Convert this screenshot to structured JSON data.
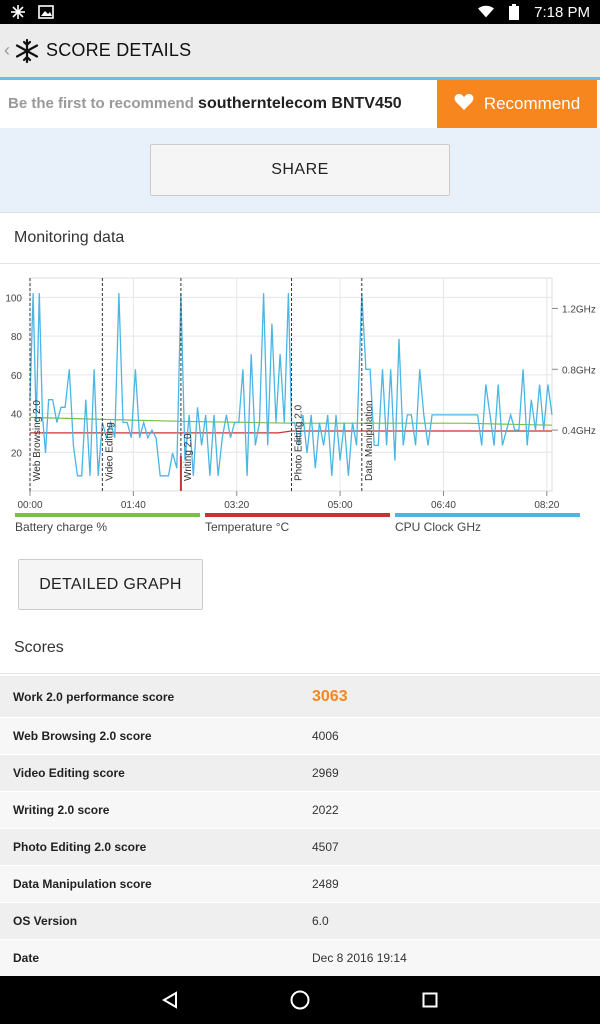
{
  "status_bar": {
    "time": "7:18 PM",
    "icons": [
      "snowflake-icon",
      "gallery-icon",
      "wifi-icon",
      "battery-icon"
    ]
  },
  "app_bar": {
    "title": "SCORE DETAILS",
    "back_icon": "chevron-left-icon",
    "logo_icon": "snowflake-icon"
  },
  "recommend": {
    "prompt": "Be the first to recommend",
    "device": "southerntelecom BNTV450",
    "button_label": "Recommend",
    "button_icon": "heart-icon",
    "accent": "#f7861e"
  },
  "share_label": "SHARE",
  "monitoring": {
    "title": "Monitoring data",
    "legend": [
      {
        "label": "Battery charge %",
        "color": "#7ac143"
      },
      {
        "label": "Temperature °C",
        "color": "#c83232"
      },
      {
        "label": "CPU Clock GHz",
        "color": "#4ab6e4"
      }
    ],
    "detailed_graph_label": "DETAILED GRAPH"
  },
  "chart_data": {
    "type": "line",
    "x_ticks": [
      "00:00",
      "01:40",
      "03:20",
      "05:00",
      "06:40",
      "08:20"
    ],
    "y_left_ticks": [
      100,
      80,
      60,
      40,
      20
    ],
    "y_right_ticks": [
      "1.2GHz",
      "0.8GHz",
      "0.4GHz"
    ],
    "x_range_min": [
      0,
      505
    ],
    "y_left_range": [
      0,
      110
    ],
    "y_right_range_ghz": [
      0,
      1.4
    ],
    "section_markers": [
      {
        "label": "Web Browsing 2.0",
        "t": 0
      },
      {
        "label": "Video Editing",
        "t": 70
      },
      {
        "label": "Writing 2.0",
        "t": 146
      },
      {
        "label": "Photo Editing 2.0",
        "t": 253
      },
      {
        "label": "Data Manipulation",
        "t": 321
      }
    ],
    "series": [
      {
        "name": "Battery charge %",
        "color": "#7ac143",
        "t": [
          0,
          70,
          146,
          253,
          321,
          420,
          505
        ],
        "values": [
          38,
          37,
          36,
          35,
          35,
          35,
          34
        ]
      },
      {
        "name": "Temperature °C",
        "color": "#c83232",
        "t": [
          0,
          70,
          146,
          240,
          253,
          321,
          505
        ],
        "values": [
          30,
          30,
          30,
          30,
          31,
          31,
          31
        ]
      },
      {
        "name": "CPU Clock GHz",
        "color": "#4ab6e4",
        "t": [
          0,
          3,
          6,
          9,
          12,
          15,
          18,
          22,
          26,
          30,
          34,
          38,
          42,
          46,
          50,
          54,
          58,
          62,
          66,
          70,
          74,
          78,
          82,
          86,
          90,
          94,
          98,
          102,
          106,
          110,
          114,
          118,
          122,
          126,
          130,
          134,
          138,
          142,
          146,
          150,
          154,
          158,
          162,
          166,
          170,
          174,
          178,
          182,
          186,
          190,
          194,
          198,
          202,
          206,
          210,
          214,
          218,
          222,
          226,
          230,
          234,
          238,
          242,
          246,
          250,
          253,
          256,
          260,
          264,
          268,
          272,
          276,
          280,
          284,
          288,
          292,
          296,
          300,
          304,
          308,
          312,
          316,
          321,
          325,
          329,
          333,
          337,
          341,
          345,
          349,
          353,
          357,
          361,
          365,
          369,
          373,
          377,
          381,
          385,
          389,
          393,
          397,
          401,
          405,
          409,
          413,
          417,
          421,
          425,
          429,
          433,
          437,
          441,
          445,
          449,
          453,
          457,
          461,
          465,
          469,
          473,
          477,
          481,
          485,
          489,
          493,
          497,
          501,
          505
        ],
        "values": [
          0.6,
          1.3,
          0.45,
          1.3,
          0.5,
          0.25,
          0.6,
          0.6,
          0.45,
          0.55,
          0.55,
          0.8,
          0.3,
          0.1,
          0.1,
          0.6,
          0.1,
          0.8,
          0.1,
          0.45,
          0.35,
          0.45,
          0.35,
          1.3,
          0.45,
          0.45,
          0.35,
          0.8,
          0.35,
          0.45,
          0.35,
          0.4,
          0.35,
          0.1,
          0.1,
          0.1,
          0.25,
          0.15,
          1.3,
          0.2,
          0.5,
          0.1,
          0.55,
          0.3,
          0.5,
          0.1,
          0.5,
          0.1,
          0.35,
          0.5,
          0.35,
          0.45,
          0.45,
          0.8,
          0.1,
          0.9,
          0.3,
          0.45,
          1.3,
          0.3,
          1.1,
          0.45,
          0.9,
          0.45,
          1.3,
          0.45,
          0.45,
          0.3,
          0.5,
          0.25,
          0.5,
          0.15,
          0.45,
          0.3,
          0.5,
          0.1,
          0.5,
          0.2,
          0.45,
          0.1,
          0.45,
          0.3,
          1.3,
          0.8,
          0.8,
          0.3,
          0.3,
          0.8,
          0.3,
          0.8,
          0.2,
          1.0,
          0.3,
          0.5,
          0.5,
          0.3,
          0.8,
          0.5,
          0.3,
          0.5,
          0.5,
          0.5,
          0.5,
          0.5,
          0.5,
          0.5,
          0.5,
          0.5,
          0.5,
          0.5,
          0.5,
          0.3,
          0.7,
          0.5,
          0.3,
          0.7,
          0.3,
          0.4,
          0.5,
          0.4,
          0.4,
          0.8,
          0.3,
          0.6,
          0.4,
          0.7,
          0.4,
          0.7,
          0.5
        ]
      }
    ]
  },
  "scores": {
    "title": "Scores",
    "rows": [
      {
        "label": "Work 2.0 performance score",
        "value": "3063",
        "highlight": true
      },
      {
        "label": "Web Browsing 2.0 score",
        "value": "4006"
      },
      {
        "label": "Video Editing score",
        "value": "2969"
      },
      {
        "label": "Writing 2.0 score",
        "value": "2022"
      },
      {
        "label": "Photo Editing 2.0 score",
        "value": "4507"
      },
      {
        "label": "Data Manipulation score",
        "value": "2489"
      },
      {
        "label": "OS Version",
        "value": "6.0"
      },
      {
        "label": "Date",
        "value": "Dec 8 2016 19:14"
      }
    ]
  },
  "nav": {
    "back_icon": "triangle-back-icon",
    "home_icon": "circle-home-icon",
    "recents_icon": "square-recents-icon"
  }
}
